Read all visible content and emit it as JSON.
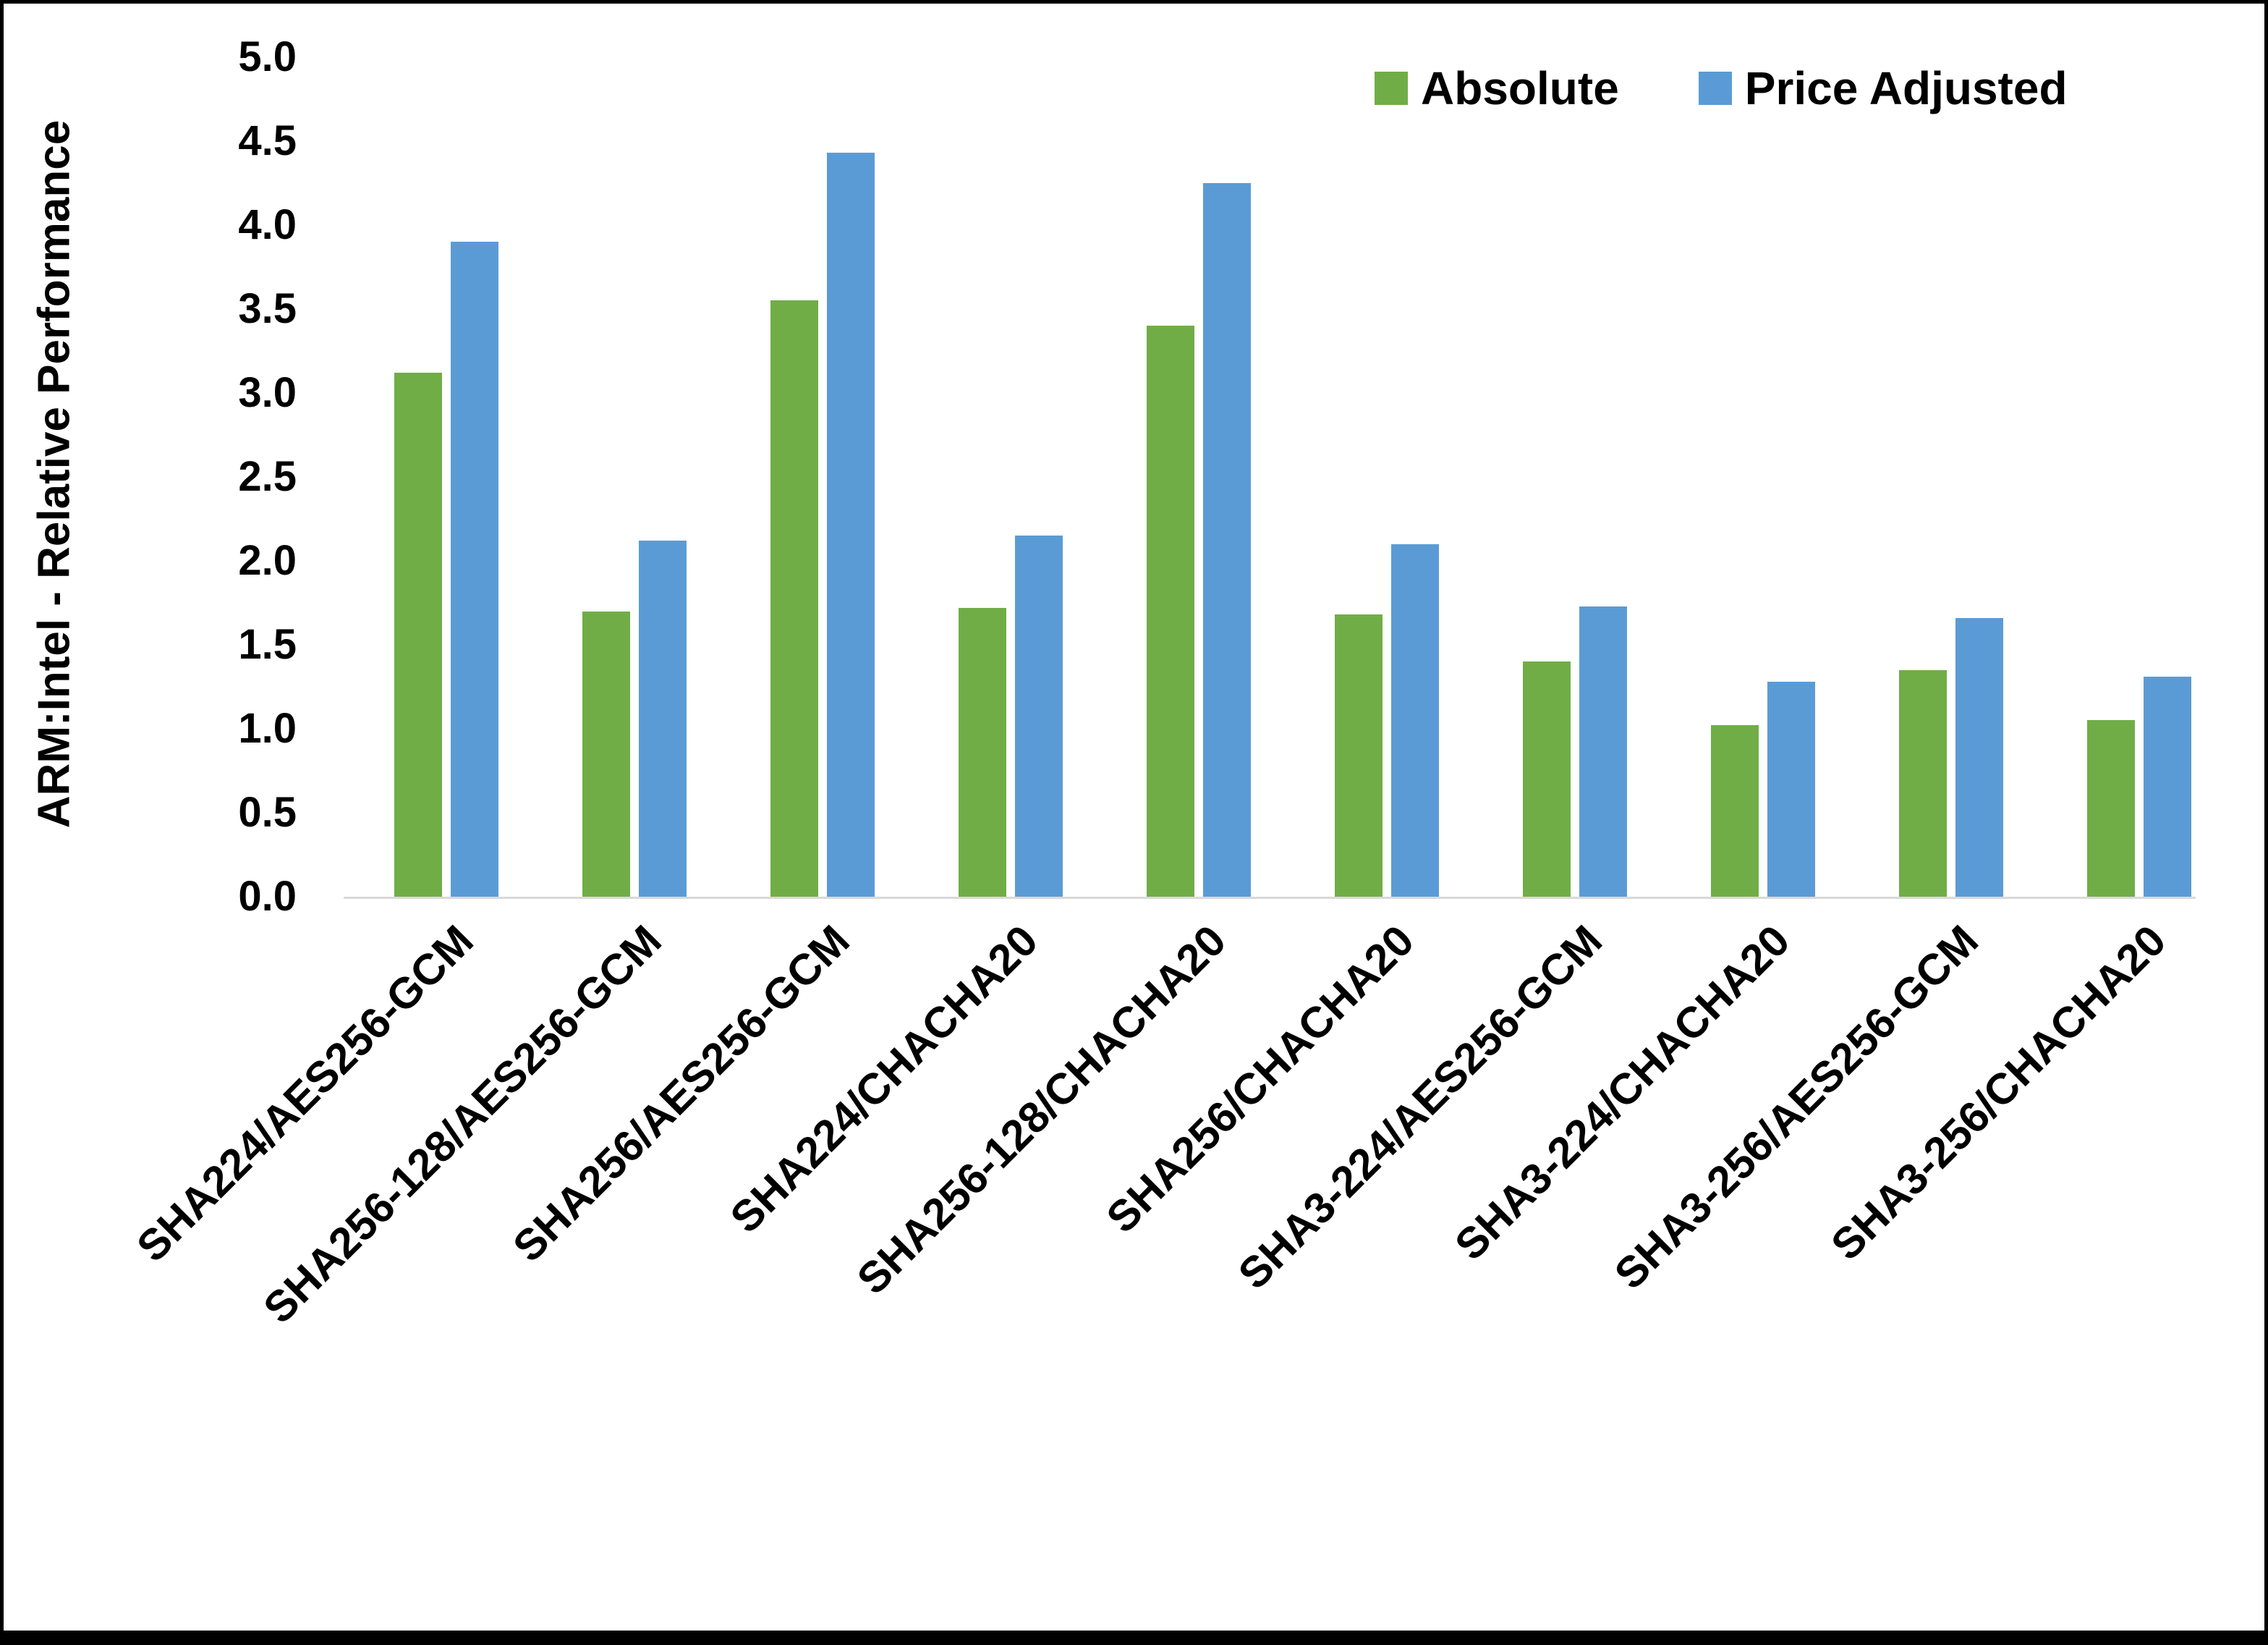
{
  "chart_data": {
    "type": "bar",
    "title": "",
    "ylabel": "ARM:Intel - Relative Performance",
    "xlabel": "",
    "ylim": [
      0,
      5
    ],
    "ytick_step": 0.5,
    "yticks": [
      "5.0",
      "4.5",
      "4.0",
      "3.5",
      "3.0",
      "2.5",
      "2.0",
      "1.5",
      "1.0",
      "0.5",
      "0.0"
    ],
    "categories": [
      "SHA224/AES256-GCM",
      "SHA256-128/AES256-GCM",
      "SHA256/AES256-GCM",
      "SHA224/CHACHA20",
      "SHA256-128/CHACHA20",
      "SHA256/CHACHA20",
      "SHA3-224/AES256-GCM",
      "SHA3-224/CHACHA20",
      "SHA3-256/AES256-GCM",
      "SHA3-256/CHACHA20"
    ],
    "series": [
      {
        "name": "Absolute",
        "color": "#70AD47",
        "values": [
          3.12,
          1.7,
          3.55,
          1.72,
          3.4,
          1.68,
          1.4,
          1.02,
          1.35,
          1.05
        ]
      },
      {
        "name": "Price Adjusted",
        "color": "#5B9BD5",
        "values": [
          3.9,
          2.12,
          4.43,
          2.15,
          4.25,
          2.1,
          1.73,
          1.28,
          1.66,
          1.31
        ]
      }
    ],
    "legend_position": "top-right",
    "grid": false
  },
  "colors": {
    "axis_line": "#D9D9D9",
    "frame": "#000000",
    "background": "#FFFFFF"
  }
}
